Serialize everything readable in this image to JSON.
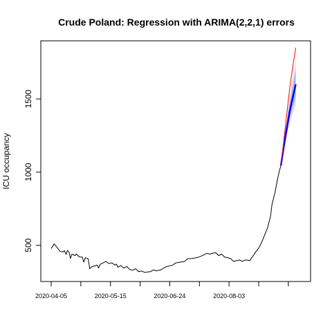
{
  "chart_data": {
    "type": "line",
    "title": "Crude Poland: Regression with ARIMA(2,2,1) errors",
    "xlabel": "",
    "ylabel": "ICU occupancy",
    "x_ticks": [
      "2020-04-05",
      "2020-05-15",
      "2020-06-24",
      "2020-08-03"
    ],
    "y_ticks": [
      500,
      1000,
      1500
    ],
    "xlim": [
      "2020-04-05",
      "2020-09-20"
    ],
    "ylim": [
      300,
      1850
    ],
    "grid": false,
    "colors": {
      "observed": "#000000",
      "forecast_mean": "#0000ff",
      "actual_outcome": "#ff0000",
      "interval_80": "#b0b4dd",
      "interval_95": "#dcdff0"
    },
    "series": [
      {
        "values": [
          [
            "2020-04-05",
            478
          ],
          [
            "2020-04-07",
            510
          ],
          [
            "2020-04-09",
            485
          ],
          [
            "2020-04-11",
            458
          ],
          [
            "2020-04-13",
            455
          ],
          [
            "2020-04-14",
            463
          ],
          [
            "2020-04-15",
            438
          ],
          [
            "2020-04-16",
            465
          ],
          [
            "2020-04-17",
            455
          ],
          [
            "2020-04-18",
            410
          ],
          [
            "2020-04-19",
            440
          ],
          [
            "2020-04-21",
            430
          ],
          [
            "2020-04-22",
            440
          ],
          [
            "2020-04-24",
            420
          ],
          [
            "2020-04-26",
            420
          ],
          [
            "2020-04-27",
            385
          ],
          [
            "2020-04-28",
            415
          ],
          [
            "2020-04-30",
            408
          ],
          [
            "2020-05-01",
            340
          ],
          [
            "2020-05-02",
            352
          ],
          [
            "2020-05-04",
            358
          ],
          [
            "2020-05-06",
            365
          ],
          [
            "2020-05-07",
            345
          ],
          [
            "2020-05-08",
            370
          ],
          [
            "2020-05-10",
            380
          ],
          [
            "2020-05-12",
            390
          ],
          [
            "2020-05-14",
            375
          ],
          [
            "2020-05-16",
            380
          ],
          [
            "2020-05-18",
            365
          ],
          [
            "2020-05-19",
            372
          ],
          [
            "2020-05-20",
            350
          ],
          [
            "2020-05-22",
            362
          ],
          [
            "2020-05-24",
            345
          ],
          [
            "2020-05-26",
            355
          ],
          [
            "2020-05-28",
            335
          ],
          [
            "2020-05-30",
            330
          ],
          [
            "2020-06-01",
            340
          ],
          [
            "2020-06-03",
            320
          ],
          [
            "2020-06-05",
            325
          ],
          [
            "2020-06-07",
            315
          ],
          [
            "2020-06-09",
            318
          ],
          [
            "2020-06-11",
            320
          ],
          [
            "2020-06-13",
            332
          ],
          [
            "2020-06-15",
            326
          ],
          [
            "2020-06-18",
            332
          ],
          [
            "2020-06-20",
            345
          ],
          [
            "2020-06-22",
            355
          ],
          [
            "2020-06-24",
            360
          ],
          [
            "2020-06-26",
            365
          ],
          [
            "2020-06-28",
            380
          ],
          [
            "2020-07-01",
            385
          ],
          [
            "2020-07-04",
            390
          ],
          [
            "2020-07-06",
            408
          ],
          [
            "2020-07-09",
            410
          ],
          [
            "2020-07-12",
            415
          ],
          [
            "2020-07-15",
            425
          ],
          [
            "2020-07-17",
            435
          ],
          [
            "2020-07-19",
            445
          ],
          [
            "2020-07-21",
            440
          ],
          [
            "2020-07-23",
            446
          ],
          [
            "2020-07-25",
            450
          ],
          [
            "2020-07-27",
            430
          ],
          [
            "2020-07-29",
            440
          ],
          [
            "2020-07-31",
            420
          ],
          [
            "2020-08-02",
            415
          ],
          [
            "2020-08-04",
            410
          ],
          [
            "2020-08-06",
            390
          ],
          [
            "2020-08-08",
            395
          ],
          [
            "2020-08-10",
            400
          ],
          [
            "2020-08-12",
            390
          ],
          [
            "2020-08-14",
            400
          ],
          [
            "2020-08-16",
            398
          ],
          [
            "2020-08-17",
            395
          ],
          [
            "2020-08-19",
            425
          ],
          [
            "2020-08-21",
            455
          ],
          [
            "2020-08-23",
            480
          ],
          [
            "2020-08-25",
            520
          ],
          [
            "2020-08-27",
            570
          ],
          [
            "2020-08-29",
            620
          ],
          [
            "2020-08-31",
            700
          ],
          [
            "2020-09-01",
            780
          ],
          [
            "2020-09-02",
            820
          ],
          [
            "2020-09-03",
            860
          ],
          [
            "2020-09-04",
            915
          ],
          [
            "2020-09-05",
            965
          ],
          [
            "2020-09-06",
            1010
          ],
          [
            "2020-09-07",
            1045
          ]
        ]
      },
      {
        "values": [
          [
            "2020-09-07",
            1045
          ],
          [
            "2020-09-09",
            1180
          ],
          [
            "2020-09-11",
            1300
          ],
          [
            "2020-09-13",
            1420
          ],
          [
            "2020-09-15",
            1510
          ],
          [
            "2020-09-17",
            1600
          ]
        ]
      },
      {
        "values": [
          [
            "2020-09-07",
            1045
          ],
          [
            "2020-09-09",
            1220
          ],
          [
            "2020-09-11",
            1400
          ],
          [
            "2020-09-13",
            1580
          ],
          [
            "2020-09-15",
            1720
          ],
          [
            "2020-09-17",
            1850
          ]
        ]
      }
    ],
    "intervals": {
      "x": [
        "2020-09-07",
        "2020-09-09",
        "2020-09-11",
        "2020-09-13",
        "2020-09-15",
        "2020-09-17"
      ],
      "lower_80": [
        1045,
        1160,
        1270,
        1370,
        1445,
        1510
      ],
      "upper_80": [
        1045,
        1205,
        1340,
        1480,
        1590,
        1700
      ],
      "lower_95": [
        1045,
        1145,
        1250,
        1340,
        1400,
        1460
      ],
      "upper_95": [
        1045,
        1225,
        1370,
        1520,
        1650,
        1770
      ]
    }
  }
}
